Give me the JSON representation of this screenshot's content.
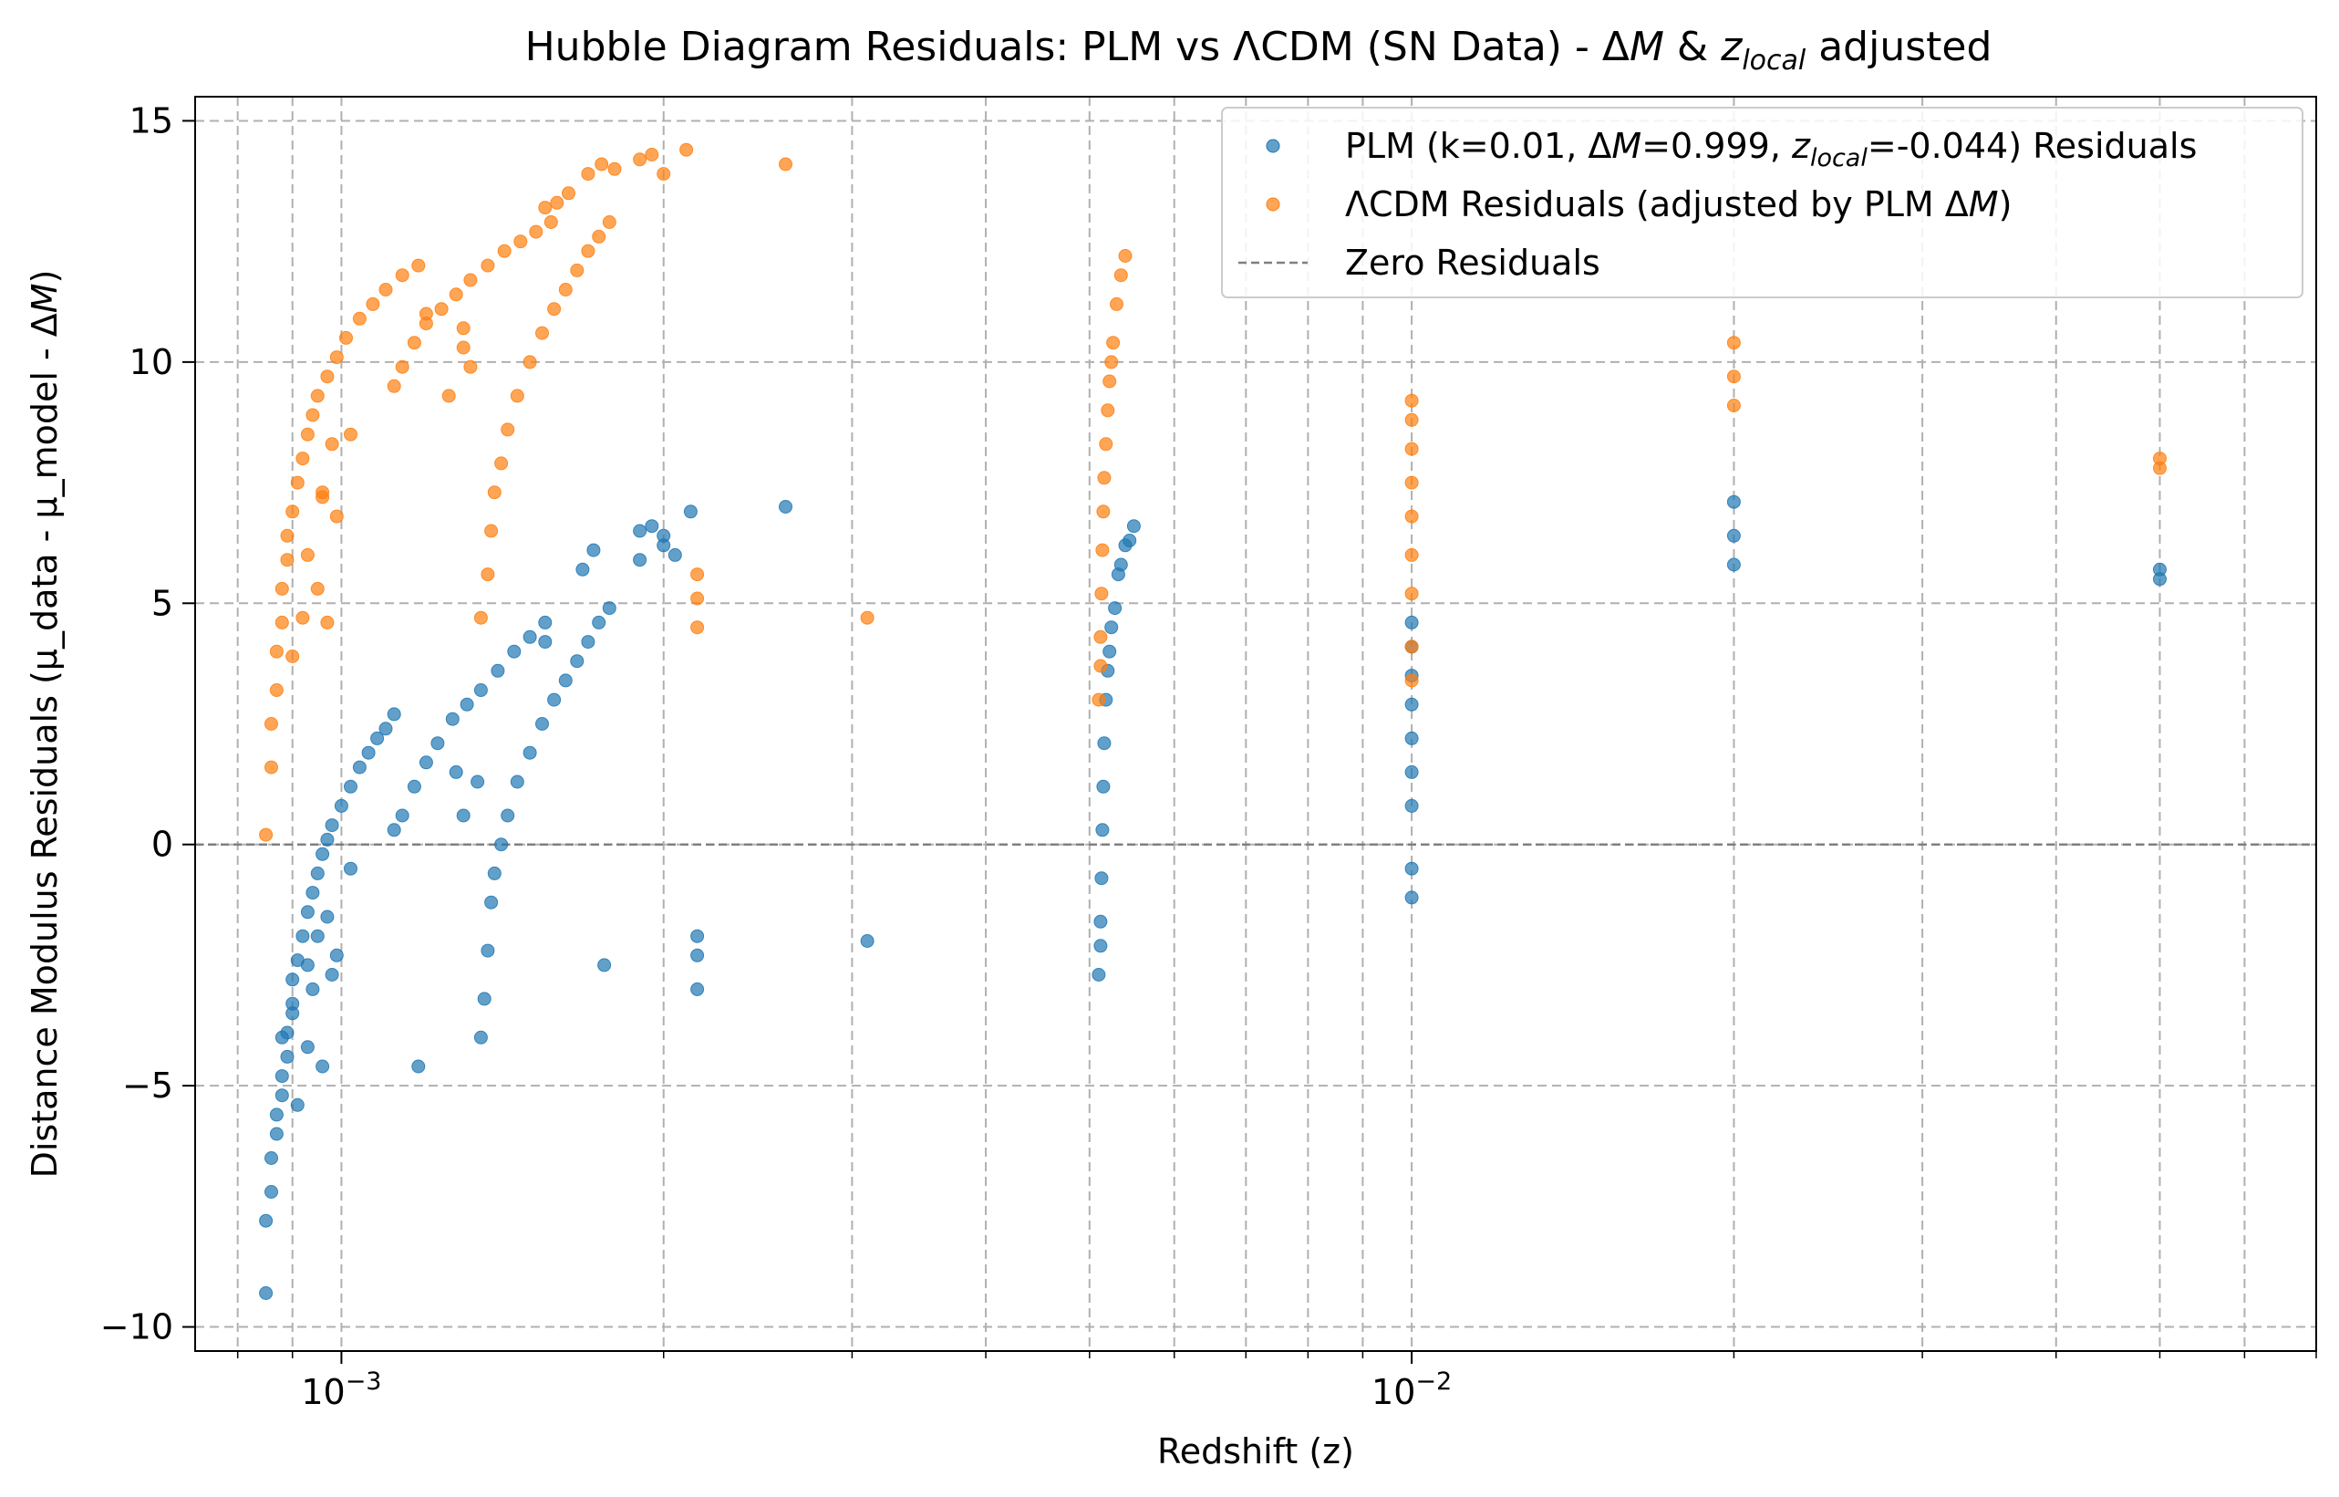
{
  "chart_data": {
    "type": "scatter",
    "title": "Hubble Diagram Residuals: PLM vs ΛCDM (SN Data) - ΔM & z_local adjusted",
    "title_parts": [
      "Hubble Diagram Residuals: PLM vs ΛCDM (SN Data) - Δ",
      "M",
      " & ",
      "z",
      "local",
      " adjusted"
    ],
    "xlabel": "Redshift (z)",
    "ylabel": "Distance Modulus Residuals (μ_data - μ_model - ΔM)",
    "ylabel_parts": [
      "Distance Modulus Residuals (μ_data - μ_model - Δ",
      "M",
      ")"
    ],
    "xscale": "log",
    "xlim": [
      0.00073,
      0.07
    ],
    "ylim": [
      -10.5,
      15.5
    ],
    "x_ticks": [
      {
        "value": 0.001,
        "base": "10",
        "exp": "−3"
      },
      {
        "value": 0.01,
        "base": "10",
        "exp": "−2"
      }
    ],
    "y_ticks": [
      {
        "value": -10,
        "label": "−10"
      },
      {
        "value": -5,
        "label": "−5"
      },
      {
        "value": 0,
        "label": "0"
      },
      {
        "value": 5,
        "label": "5"
      },
      {
        "value": 10,
        "label": "10"
      },
      {
        "value": 15,
        "label": "15"
      }
    ],
    "grid": true,
    "legend_position": "top-right",
    "zero_line": {
      "y": 0,
      "color": "#808080",
      "style": "dashed"
    },
    "legend": [
      {
        "parts": [
          "PLM (k=0.01, Δ",
          "M",
          "=0.999, ",
          "z",
          "local",
          "=-0.044) Residuals"
        ],
        "kind": "marker",
        "color": "#1f77b4"
      },
      {
        "parts": [
          "ΛCDM Residuals (adjusted by PLM Δ",
          "M",
          ")"
        ],
        "kind": "marker",
        "color": "#ff7f0e"
      },
      {
        "parts": [
          "Zero Residuals"
        ],
        "kind": "line",
        "color": "#808080"
      }
    ],
    "series": [
      {
        "name": "PLM (k=0.01, ΔM=0.999, z_local=-0.044) Residuals",
        "color": "#1f77b4",
        "points": [
          [
            0.00085,
            -9.3
          ],
          [
            0.00085,
            -7.8
          ],
          [
            0.00086,
            -7.2
          ],
          [
            0.00086,
            -6.5
          ],
          [
            0.00087,
            -6.0
          ],
          [
            0.00087,
            -5.6
          ],
          [
            0.00088,
            -5.2
          ],
          [
            0.00088,
            -4.8
          ],
          [
            0.00089,
            -4.4
          ],
          [
            0.00089,
            -3.9
          ],
          [
            0.0009,
            -3.3
          ],
          [
            0.0009,
            -2.8
          ],
          [
            0.00091,
            -2.4
          ],
          [
            0.00092,
            -1.9
          ],
          [
            0.00093,
            -1.4
          ],
          [
            0.00094,
            -1.0
          ],
          [
            0.00095,
            -0.6
          ],
          [
            0.00096,
            -0.2
          ],
          [
            0.00097,
            0.1
          ],
          [
            0.00098,
            0.4
          ],
          [
            0.001,
            0.8
          ],
          [
            0.00102,
            1.2
          ],
          [
            0.00104,
            1.6
          ],
          [
            0.00106,
            1.9
          ],
          [
            0.00108,
            2.2
          ],
          [
            0.0011,
            2.4
          ],
          [
            0.00112,
            2.7
          ],
          [
            0.00088,
            -4.0
          ],
          [
            0.0009,
            -3.5
          ],
          [
            0.00093,
            -2.5
          ],
          [
            0.00095,
            -1.9
          ],
          [
            0.00097,
            -1.5
          ],
          [
            0.00099,
            -2.3
          ],
          [
            0.00102,
            -0.5
          ],
          [
            0.00093,
            -4.2
          ],
          [
            0.00096,
            -4.6
          ],
          [
            0.00098,
            -2.7
          ],
          [
            0.00091,
            -5.4
          ],
          [
            0.00094,
            -3.0
          ],
          [
            0.00112,
            0.3
          ],
          [
            0.00114,
            0.6
          ],
          [
            0.00117,
            1.2
          ],
          [
            0.0012,
            1.7
          ],
          [
            0.00123,
            2.1
          ],
          [
            0.00127,
            2.6
          ],
          [
            0.00131,
            2.9
          ],
          [
            0.00135,
            3.2
          ],
          [
            0.0014,
            3.6
          ],
          [
            0.00145,
            4.0
          ],
          [
            0.0015,
            4.3
          ],
          [
            0.00155,
            4.6
          ],
          [
            0.0013,
            0.6
          ],
          [
            0.00134,
            1.3
          ],
          [
            0.00118,
            -4.6
          ],
          [
            0.00128,
            1.5
          ],
          [
            0.00135,
            -4.0
          ],
          [
            0.00136,
            -3.2
          ],
          [
            0.00137,
            -2.2
          ],
          [
            0.00138,
            -1.2
          ],
          [
            0.00139,
            -0.6
          ],
          [
            0.00141,
            0.0
          ],
          [
            0.00143,
            0.6
          ],
          [
            0.00146,
            1.3
          ],
          [
            0.0015,
            1.9
          ],
          [
            0.00154,
            2.5
          ],
          [
            0.00158,
            3.0
          ],
          [
            0.00162,
            3.4
          ],
          [
            0.00166,
            3.8
          ],
          [
            0.0017,
            4.2
          ],
          [
            0.00174,
            4.6
          ],
          [
            0.00178,
            4.9
          ],
          [
            0.00176,
            -2.5
          ],
          [
            0.00155,
            4.2
          ],
          [
            0.00168,
            5.7
          ],
          [
            0.00172,
            6.1
          ],
          [
            0.0019,
            5.9
          ],
          [
            0.0019,
            6.5
          ],
          [
            0.00195,
            6.6
          ],
          [
            0.002,
            6.2
          ],
          [
            0.002,
            6.4
          ],
          [
            0.00205,
            6.0
          ],
          [
            0.00212,
            6.9
          ],
          [
            0.00215,
            -1.9
          ],
          [
            0.00215,
            -2.3
          ],
          [
            0.00215,
            -3.0
          ],
          [
            0.0026,
            7.0
          ],
          [
            0.0031,
            -2.0
          ],
          [
            0.0051,
            -2.7
          ],
          [
            0.00512,
            -2.1
          ],
          [
            0.00512,
            -1.6
          ],
          [
            0.00513,
            -0.7
          ],
          [
            0.00514,
            0.3
          ],
          [
            0.00515,
            1.2
          ],
          [
            0.00516,
            2.1
          ],
          [
            0.00518,
            3.0
          ],
          [
            0.0052,
            3.6
          ],
          [
            0.00522,
            4.0
          ],
          [
            0.00524,
            4.5
          ],
          [
            0.00528,
            4.9
          ],
          [
            0.00532,
            5.6
          ],
          [
            0.0054,
            6.2
          ],
          [
            0.00545,
            6.3
          ],
          [
            0.0055,
            6.6
          ],
          [
            0.00535,
            5.8
          ],
          [
            0.01,
            -1.1
          ],
          [
            0.01,
            -0.5
          ],
          [
            0.01,
            0.8
          ],
          [
            0.01,
            1.5
          ],
          [
            0.01,
            2.2
          ],
          [
            0.01,
            2.9
          ],
          [
            0.01,
            3.5
          ],
          [
            0.01,
            4.1
          ],
          [
            0.01,
            4.6
          ],
          [
            0.02,
            5.8
          ],
          [
            0.02,
            6.4
          ],
          [
            0.02,
            7.1
          ],
          [
            0.05,
            5.5
          ],
          [
            0.05,
            5.7
          ]
        ]
      },
      {
        "name": "ΛCDM Residuals (adjusted by PLM ΔM)",
        "color": "#ff7f0e",
        "points": [
          [
            0.00085,
            0.2
          ],
          [
            0.00086,
            1.6
          ],
          [
            0.00086,
            2.5
          ],
          [
            0.00087,
            3.2
          ],
          [
            0.00087,
            4.0
          ],
          [
            0.00088,
            4.6
          ],
          [
            0.00088,
            5.3
          ],
          [
            0.00089,
            5.9
          ],
          [
            0.00089,
            6.4
          ],
          [
            0.0009,
            6.9
          ],
          [
            0.00091,
            7.5
          ],
          [
            0.00092,
            8.0
          ],
          [
            0.00093,
            8.5
          ],
          [
            0.00094,
            8.9
          ],
          [
            0.00095,
            9.3
          ],
          [
            0.00097,
            9.7
          ],
          [
            0.00099,
            10.1
          ],
          [
            0.00101,
            10.5
          ],
          [
            0.00104,
            10.9
          ],
          [
            0.00107,
            11.2
          ],
          [
            0.0011,
            11.5
          ],
          [
            0.00114,
            11.8
          ],
          [
            0.00118,
            12.0
          ],
          [
            0.0009,
            3.9
          ],
          [
            0.00095,
            5.3
          ],
          [
            0.00097,
            4.6
          ],
          [
            0.00099,
            6.8
          ],
          [
            0.00096,
            7.2
          ],
          [
            0.00098,
            8.3
          ],
          [
            0.00102,
            8.5
          ],
          [
            0.00093,
            6.0
          ],
          [
            0.00096,
            7.3
          ],
          [
            0.00092,
            4.7
          ],
          [
            0.00112,
            9.5
          ],
          [
            0.00114,
            9.9
          ],
          [
            0.00117,
            10.4
          ],
          [
            0.0012,
            10.8
          ],
          [
            0.00124,
            11.1
          ],
          [
            0.00128,
            11.4
          ],
          [
            0.00132,
            11.7
          ],
          [
            0.00137,
            12.0
          ],
          [
            0.00142,
            12.3
          ],
          [
            0.00147,
            12.5
          ],
          [
            0.00152,
            12.7
          ],
          [
            0.00157,
            12.9
          ],
          [
            0.00126,
            9.3
          ],
          [
            0.0013,
            10.3
          ],
          [
            0.00132,
            9.9
          ],
          [
            0.0013,
            10.7
          ],
          [
            0.0012,
            11.0
          ],
          [
            0.00155,
            13.2
          ],
          [
            0.00159,
            13.3
          ],
          [
            0.00135,
            4.7
          ],
          [
            0.00137,
            5.6
          ],
          [
            0.00138,
            6.5
          ],
          [
            0.00139,
            7.3
          ],
          [
            0.00141,
            7.9
          ],
          [
            0.00143,
            8.6
          ],
          [
            0.00146,
            9.3
          ],
          [
            0.0015,
            10.0
          ],
          [
            0.00154,
            10.6
          ],
          [
            0.00158,
            11.1
          ],
          [
            0.00162,
            11.5
          ],
          [
            0.00166,
            11.9
          ],
          [
            0.0017,
            12.3
          ],
          [
            0.00174,
            12.6
          ],
          [
            0.00178,
            12.9
          ],
          [
            0.00163,
            13.5
          ],
          [
            0.0017,
            13.9
          ],
          [
            0.00175,
            14.1
          ],
          [
            0.0018,
            14.0
          ],
          [
            0.0019,
            14.2
          ],
          [
            0.00195,
            14.3
          ],
          [
            0.002,
            13.9
          ],
          [
            0.0021,
            14.4
          ],
          [
            0.00215,
            5.6
          ],
          [
            0.00215,
            5.1
          ],
          [
            0.00215,
            4.5
          ],
          [
            0.0026,
            14.1
          ],
          [
            0.0031,
            4.7
          ],
          [
            0.0051,
            3.0
          ],
          [
            0.00512,
            3.7
          ],
          [
            0.00512,
            4.3
          ],
          [
            0.00513,
            5.2
          ],
          [
            0.00514,
            6.1
          ],
          [
            0.00515,
            6.9
          ],
          [
            0.00516,
            7.6
          ],
          [
            0.00518,
            8.3
          ],
          [
            0.0052,
            9.0
          ],
          [
            0.00522,
            9.6
          ],
          [
            0.00524,
            10.0
          ],
          [
            0.00526,
            10.4
          ],
          [
            0.0053,
            11.2
          ],
          [
            0.00535,
            11.8
          ],
          [
            0.0054,
            12.2
          ],
          [
            0.01,
            3.4
          ],
          [
            0.01,
            4.1
          ],
          [
            0.01,
            5.2
          ],
          [
            0.01,
            6.0
          ],
          [
            0.01,
            6.8
          ],
          [
            0.01,
            7.5
          ],
          [
            0.01,
            8.2
          ],
          [
            0.01,
            8.8
          ],
          [
            0.01,
            9.2
          ],
          [
            0.02,
            9.1
          ],
          [
            0.02,
            9.7
          ],
          [
            0.02,
            10.4
          ],
          [
            0.05,
            7.8
          ],
          [
            0.05,
            8.0
          ]
        ]
      }
    ]
  }
}
